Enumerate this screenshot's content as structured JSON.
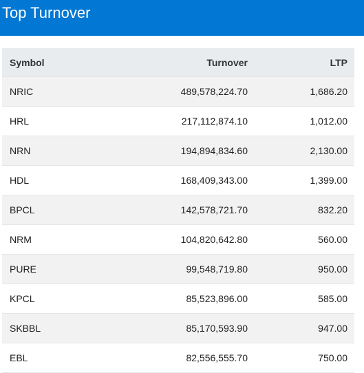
{
  "header": {
    "title": "Top Turnover"
  },
  "table": {
    "columns": {
      "symbol": "Symbol",
      "turnover": "Turnover",
      "ltp": "LTP"
    },
    "rows": [
      {
        "symbol": "NRIC",
        "turnover": "489,578,224.70",
        "ltp": "1,686.20"
      },
      {
        "symbol": "HRL",
        "turnover": "217,112,874.10",
        "ltp": "1,012.00"
      },
      {
        "symbol": "NRN",
        "turnover": "194,894,834.60",
        "ltp": "2,130.00"
      },
      {
        "symbol": "HDL",
        "turnover": "168,409,343.00",
        "ltp": "1,399.00"
      },
      {
        "symbol": "BPCL",
        "turnover": "142,578,721.70",
        "ltp": "832.20"
      },
      {
        "symbol": "NRM",
        "turnover": "104,820,642.80",
        "ltp": "560.00"
      },
      {
        "symbol": "PURE",
        "turnover": "99,548,719.80",
        "ltp": "950.00"
      },
      {
        "symbol": "KPCL",
        "turnover": "85,523,896.00",
        "ltp": "585.00"
      },
      {
        "symbol": "SKBBL",
        "turnover": "85,170,593.90",
        "ltp": "947.00"
      },
      {
        "symbol": "EBL",
        "turnover": "82,556,555.70",
        "ltp": "750.00"
      }
    ]
  }
}
